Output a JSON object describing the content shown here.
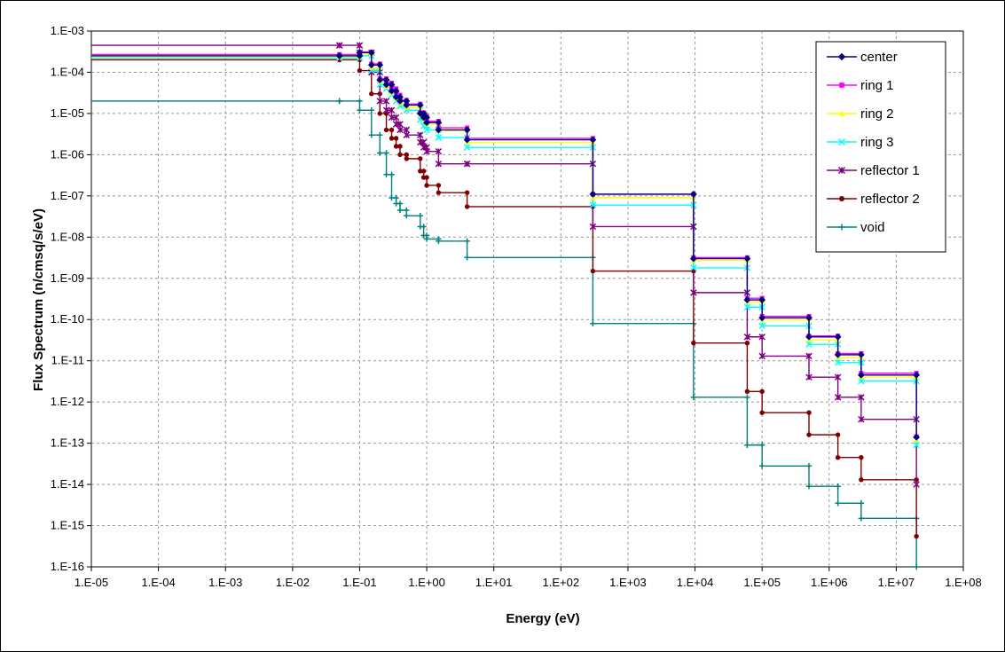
{
  "chart_data": {
    "type": "line",
    "step": "pre",
    "xscale": "log",
    "yscale": "log",
    "xlabel": "Energy (eV)",
    "ylabel": "Flux Spectrum (n/cmsq/s/eV)",
    "xlim": [
      1e-05,
      100000000.0
    ],
    "ylim": [
      1e-16,
      0.001
    ],
    "x_tick_labels": [
      "1.E-05",
      "1.E-04",
      "1.E-03",
      "1.E-02",
      "1.E-01",
      "1.E+00",
      "1.E+01",
      "1.E+02",
      "1.E+03",
      "1.E+04",
      "1.E+05",
      "1.E+06",
      "1.E+07",
      "1.E+08"
    ],
    "y_tick_labels": [
      "1.E-03",
      "1.E-04",
      "1.E-05",
      "1.E-06",
      "1.E-07",
      "1.E-08",
      "1.E-09",
      "1.E-10",
      "1.E-11",
      "1.E-12",
      "1.E-13",
      "1.E-14",
      "1.E-15",
      "1.E-16"
    ],
    "grid": true,
    "legend_position": "top-right",
    "x": [
      1e-05,
      0.05,
      0.1,
      0.15,
      0.2,
      0.25,
      0.3,
      0.35,
      0.4,
      0.5,
      0.8,
      0.9,
      1.0,
      1.5,
      4.0,
      300.0,
      9500.0,
      60000.0,
      100000.0,
      500000.0,
      1350000.0,
      3000000.0,
      20000000.0
    ],
    "series": [
      {
        "name": "center",
        "color": "#000080",
        "marker": "diamond",
        "values": [
          0.00025,
          0.00025,
          0.0003,
          0.00015,
          6.5e-05,
          5e-05,
          3.5e-05,
          2.5e-05,
          2e-05,
          1.6e-05,
          1e-05,
          8e-06,
          6e-06,
          4e-06,
          2.3e-06,
          1.1e-07,
          3e-09,
          3e-10,
          1.1e-10,
          3.8e-11,
          1.4e-11,
          4.5e-12,
          1.4e-13
        ]
      },
      {
        "name": "ring 1",
        "color": "#ff00ff",
        "marker": "square",
        "values": [
          0.00027,
          0.00027,
          0.00031,
          0.00016,
          7e-05,
          5.5e-05,
          4e-05,
          2.8e-05,
          2.1e-05,
          1.7e-05,
          1.05e-05,
          8.5e-06,
          6.5e-06,
          4.5e-06,
          2.5e-06,
          1.1e-07,
          3.2e-09,
          3.3e-10,
          1.2e-10,
          4e-11,
          1.5e-11,
          5e-12,
          1.45e-13
        ]
      },
      {
        "name": "ring 2",
        "color": "#ffff00",
        "marker": "triangle",
        "values": [
          0.00024,
          0.00024,
          0.00028,
          0.00013,
          6e-05,
          4.5e-05,
          3.2e-05,
          2.3e-05,
          1.8e-05,
          1.4e-05,
          9e-06,
          7e-06,
          5.5e-06,
          3.8e-06,
          2e-06,
          9e-08,
          2.7e-09,
          2.7e-10,
          1e-10,
          3.2e-11,
          1.2e-11,
          4e-12,
          1.2e-13
        ]
      },
      {
        "name": "ring 3",
        "color": "#00ffff",
        "marker": "x",
        "values": [
          0.00022,
          0.00022,
          0.00025,
          0.00011,
          5e-05,
          4e-05,
          2.8e-05,
          2e-05,
          1.5e-05,
          1.2e-05,
          7e-06,
          5e-06,
          4e-06,
          2.6e-06,
          1.5e-06,
          6e-08,
          1.8e-09,
          2e-10,
          7e-11,
          2.5e-11,
          9e-12,
          3.2e-12,
          9e-14
        ]
      },
      {
        "name": "reflector 1",
        "color": "#800080",
        "marker": "star",
        "values": [
          0.00045,
          0.00045,
          0.0003,
          0.0001,
          2e-05,
          1.2e-05,
          8e-06,
          5.5e-06,
          4e-06,
          3e-06,
          2e-06,
          1.5e-06,
          1.2e-06,
          6e-07,
          6e-07,
          1.8e-08,
          4.5e-10,
          3.8e-11,
          1.3e-11,
          4e-12,
          1.3e-12,
          3.8e-13,
          1e-14
        ]
      },
      {
        "name": "reflector 2",
        "color": "#800000",
        "marker": "circle",
        "values": [
          0.0002,
          0.0002,
          0.00011,
          3e-05,
          1e-05,
          4e-06,
          2.5e-06,
          1.6e-06,
          1e-06,
          8e-07,
          4e-07,
          2.8e-07,
          1.8e-07,
          1.2e-07,
          5.5e-08,
          1.5e-09,
          2.7e-11,
          1.8e-12,
          5.5e-13,
          1.6e-13,
          4.5e-14,
          1.3e-14,
          5.5e-16
        ]
      },
      {
        "name": "void",
        "color": "#008080",
        "marker": "plus",
        "values": [
          2e-05,
          2e-05,
          1.2e-05,
          3e-06,
          1.1e-06,
          3.3e-07,
          9e-08,
          6.5e-08,
          4.5e-08,
          3.3e-08,
          1.8e-08,
          1.1e-08,
          9e-09,
          8e-09,
          3.2e-09,
          8e-11,
          1.3e-12,
          9e-14,
          2.8e-14,
          9e-15,
          3.5e-15,
          1.5e-15,
          1e-16
        ]
      }
    ]
  }
}
